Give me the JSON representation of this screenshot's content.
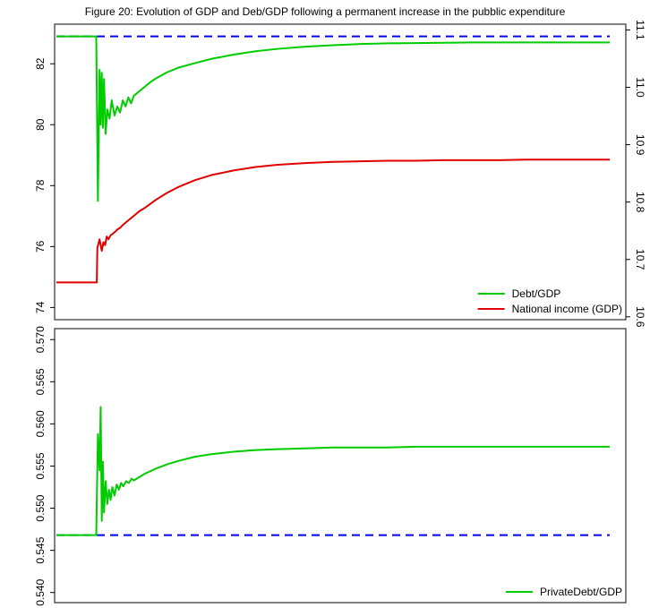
{
  "figure": {
    "title": "Figure 20: Evolution of GDP and Deb/GDP following a permanent increase in the pubblic expenditure"
  },
  "chart_data": [
    {
      "type": "line",
      "title": "",
      "xlabel": "",
      "ylabel": "",
      "grid": false,
      "legend_position": "bottom-right",
      "ylim": [
        73.6,
        83.3
      ],
      "y_ticks": [
        "74",
        "76",
        "78",
        "80",
        "82"
      ],
      "y2lim": [
        10.595,
        11.11
      ],
      "y2_ticks": [
        "10.6",
        "10.7",
        "10.8",
        "10.9",
        "11.0",
        "11.1"
      ],
      "xlim": [
        0,
        100
      ],
      "series": [
        {
          "name": "Debt/GDP",
          "axis": "left",
          "color": "#00cc00",
          "x": [
            0,
            7.2,
            7.5,
            7.8,
            8.0,
            8.2,
            8.4,
            8.6,
            8.9,
            9.2,
            9.6,
            10,
            10.5,
            11,
            11.5,
            12,
            12.5,
            13,
            13.5,
            14,
            15,
            16,
            17,
            18,
            20,
            22,
            25,
            28,
            32,
            36,
            40,
            45,
            50,
            55,
            60,
            65,
            70,
            75,
            80,
            85,
            90,
            95,
            100
          ],
          "values": [
            82.9,
            82.9,
            77.5,
            81.8,
            80.0,
            81.7,
            79.9,
            81.5,
            79.7,
            80.5,
            80.2,
            80.8,
            80.3,
            80.6,
            80.4,
            80.8,
            80.6,
            80.9,
            80.7,
            80.95,
            81.1,
            81.25,
            81.4,
            81.52,
            81.72,
            81.87,
            82.02,
            82.16,
            82.3,
            82.41,
            82.49,
            82.56,
            82.61,
            82.65,
            82.67,
            82.68,
            82.69,
            82.7,
            82.7,
            82.7,
            82.7,
            82.7,
            82.7
          ]
        },
        {
          "name": "National income (GDP)",
          "axis": "right",
          "color": "#e00000",
          "x": [
            0,
            7.3,
            7.4,
            7.8,
            8.2,
            8.5,
            8.8,
            9.1,
            9.4,
            9.8,
            10.2,
            10.6,
            11,
            11.5,
            12,
            13,
            14,
            15,
            16,
            18,
            20,
            22,
            25,
            28,
            32,
            36,
            40,
            45,
            50,
            55,
            60,
            65,
            70,
            75,
            80,
            85,
            90,
            95,
            100
          ],
          "values": [
            10.66,
            10.66,
            10.72,
            10.735,
            10.715,
            10.73,
            10.725,
            10.74,
            10.735,
            10.742,
            10.745,
            10.748,
            10.752,
            10.755,
            10.76,
            10.768,
            10.776,
            10.784,
            10.79,
            10.804,
            10.816,
            10.826,
            10.838,
            10.847,
            10.855,
            10.861,
            10.865,
            10.868,
            10.87,
            10.871,
            10.872,
            10.872,
            10.873,
            10.873,
            10.873,
            10.874,
            10.874,
            10.874,
            10.874
          ]
        },
        {
          "name": "",
          "axis": "left",
          "color": "#0000ee",
          "dash": true,
          "x": [
            0,
            100
          ],
          "values": [
            82.9,
            82.9
          ]
        }
      ]
    },
    {
      "type": "line",
      "title": "",
      "xlabel": "",
      "ylabel": "",
      "grid": false,
      "legend_position": "bottom-right",
      "ylim": [
        0.5388,
        0.5713
      ],
      "y_ticks": [
        "0.540",
        "0.545",
        "0.550",
        "0.555",
        "0.560",
        "0.565",
        "0.570"
      ],
      "xlim": [
        0,
        100
      ],
      "series": [
        {
          "name": "PrivateDebt/GDP",
          "color": "#00cc00",
          "x": [
            0,
            7.2,
            7.5,
            7.8,
            8.0,
            8.2,
            8.4,
            8.6,
            8.9,
            9.2,
            9.5,
            9.8,
            10.1,
            10.5,
            10.9,
            11.3,
            11.7,
            12.1,
            12.6,
            13.1,
            13.6,
            14,
            15,
            16,
            17,
            18,
            20,
            22,
            25,
            28,
            32,
            36,
            40,
            45,
            50,
            55,
            60,
            65,
            70,
            75,
            80,
            85,
            90,
            95,
            100
          ],
          "values": [
            0.5468,
            0.5468,
            0.5588,
            0.5545,
            0.562,
            0.5485,
            0.5555,
            0.5495,
            0.5532,
            0.5505,
            0.5522,
            0.551,
            0.5525,
            0.5515,
            0.5528,
            0.5522,
            0.553,
            0.5526,
            0.5532,
            0.553,
            0.5535,
            0.5533,
            0.5537,
            0.5541,
            0.5544,
            0.5547,
            0.5552,
            0.5556,
            0.5561,
            0.5564,
            0.5567,
            0.5569,
            0.557,
            0.5571,
            0.5572,
            0.5572,
            0.5572,
            0.5573,
            0.5573,
            0.5573,
            0.5573,
            0.5573,
            0.5573,
            0.5573,
            0.5573
          ]
        },
        {
          "name": "",
          "color": "#0000ee",
          "dash": true,
          "x": [
            0,
            100
          ],
          "values": [
            0.5468,
            0.5468
          ]
        }
      ]
    }
  ]
}
